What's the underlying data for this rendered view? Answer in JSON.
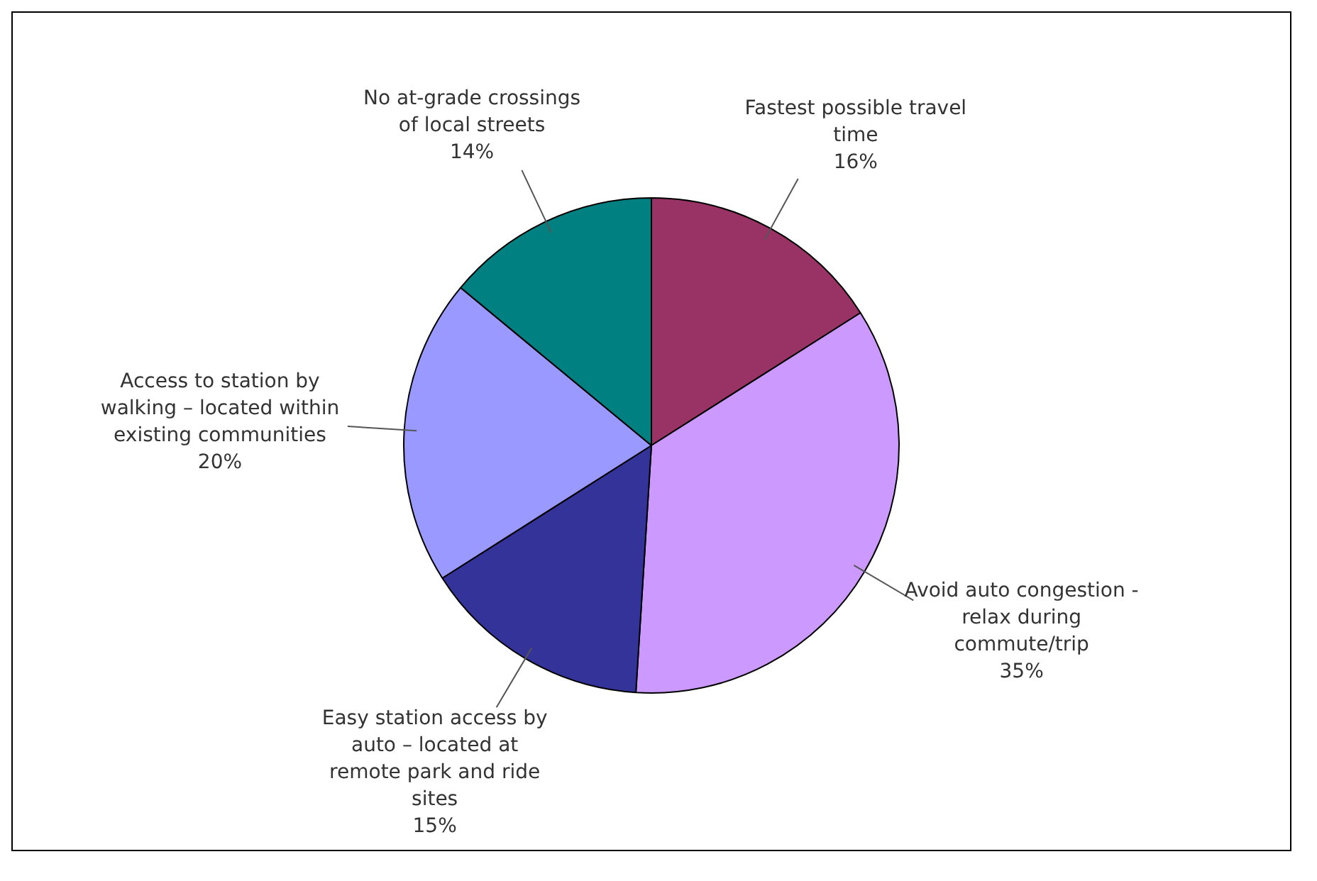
{
  "chart_data": {
    "type": "pie",
    "categories": [
      "Fastest possible travel time",
      "Avoid auto congestion - relax during commute/trip",
      "Easy station access by auto – located at remote park and ride sites",
      "Access to station by walking – located within existing communities",
      "No at-grade crossings of local streets"
    ],
    "values": [
      16,
      35,
      15,
      20,
      14
    ],
    "value_labels": [
      "16%",
      "35%",
      "15%",
      "20%",
      "14%"
    ],
    "colors": [
      "#993366",
      "#cc99ff",
      "#333399",
      "#9999ff",
      "#008080"
    ],
    "legend": false
  }
}
